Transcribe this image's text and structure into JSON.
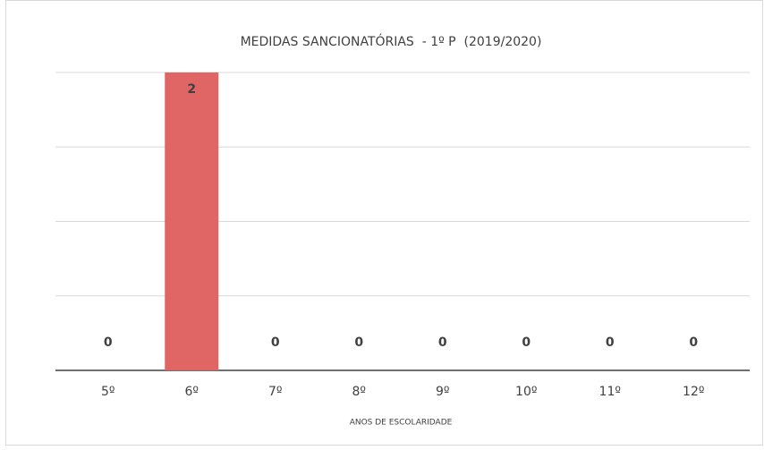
{
  "chart_data": {
    "type": "bar",
    "title": "MEDIDAS SANCIONATÓRIAS  - 1º P  (2019/2020)",
    "x_label": "ANOS DE ESCOLARIDADE",
    "categories": [
      "5º",
      "6º",
      "7º",
      "8º",
      "9º",
      "10º",
      "11º",
      "12º"
    ],
    "values": [
      0,
      2,
      0,
      0,
      0,
      0,
      0,
      0
    ],
    "color": "#e06666",
    "ylim": [
      0,
      2
    ],
    "yticks": [
      0,
      0.5,
      1,
      1.5,
      2
    ],
    "grid": true
  }
}
